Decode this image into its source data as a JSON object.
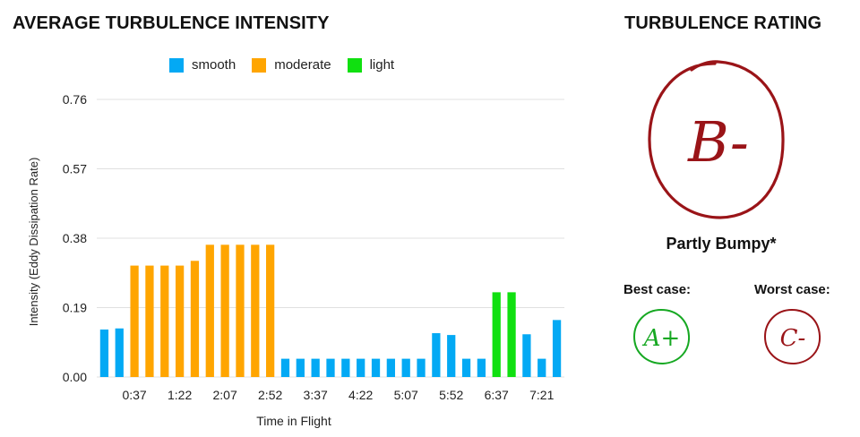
{
  "panel": {
    "chart_title": "AVERAGE TURBULENCE INTENSITY",
    "rating_title": "TURBULENCE RATING"
  },
  "colors": {
    "smooth": "#03a9f4",
    "moderate": "#ffa500",
    "light": "#10e010",
    "grade_red": "#9a1418",
    "grade_green": "#16a822",
    "grid": "#e0e0e0"
  },
  "chart_data": {
    "type": "bar",
    "title": "AVERAGE TURBULENCE INTENSITY",
    "xlabel": "Time in Flight",
    "ylabel": "Intensity (Eddy Dissipation Rate)",
    "ylim": [
      0,
      0.76
    ],
    "yticks": [
      "0.76",
      "0.57",
      "0.38",
      "0.19",
      "0.00"
    ],
    "ytick_values": [
      0.76,
      0.57,
      0.38,
      0.19,
      0.0
    ],
    "xtick_labels": [
      "0:37",
      "1:22",
      "2:07",
      "2:52",
      "3:37",
      "4:22",
      "5:07",
      "5:52",
      "6:37",
      "7:21"
    ],
    "xtick_bar_index": [
      2,
      5,
      8,
      11,
      14,
      17,
      20,
      23,
      26,
      29
    ],
    "legend": [
      {
        "key": "smooth",
        "label": "smooth"
      },
      {
        "key": "moderate",
        "label": "moderate"
      },
      {
        "key": "light",
        "label": "light"
      }
    ],
    "values": [
      0.13,
      0.133,
      0.305,
      0.305,
      0.305,
      0.305,
      0.318,
      0.362,
      0.362,
      0.362,
      0.362,
      0.362,
      0.05,
      0.05,
      0.05,
      0.05,
      0.05,
      0.05,
      0.05,
      0.05,
      0.05,
      0.05,
      0.12,
      0.115,
      0.05,
      0.05,
      0.232,
      0.232,
      0.117,
      0.05,
      0.156
    ],
    "categories": [
      "smooth",
      "smooth",
      "moderate",
      "moderate",
      "moderate",
      "moderate",
      "moderate",
      "moderate",
      "moderate",
      "moderate",
      "moderate",
      "moderate",
      "smooth",
      "smooth",
      "smooth",
      "smooth",
      "smooth",
      "smooth",
      "smooth",
      "smooth",
      "smooth",
      "smooth",
      "smooth",
      "smooth",
      "smooth",
      "smooth",
      "light",
      "light",
      "smooth",
      "smooth",
      "smooth"
    ]
  },
  "rating": {
    "grade": "B-",
    "description": "Partly Bumpy*",
    "best_case_label": "Best case:",
    "best_case_grade": "A+",
    "worst_case_label": "Worst case:",
    "worst_case_grade": "C-"
  }
}
